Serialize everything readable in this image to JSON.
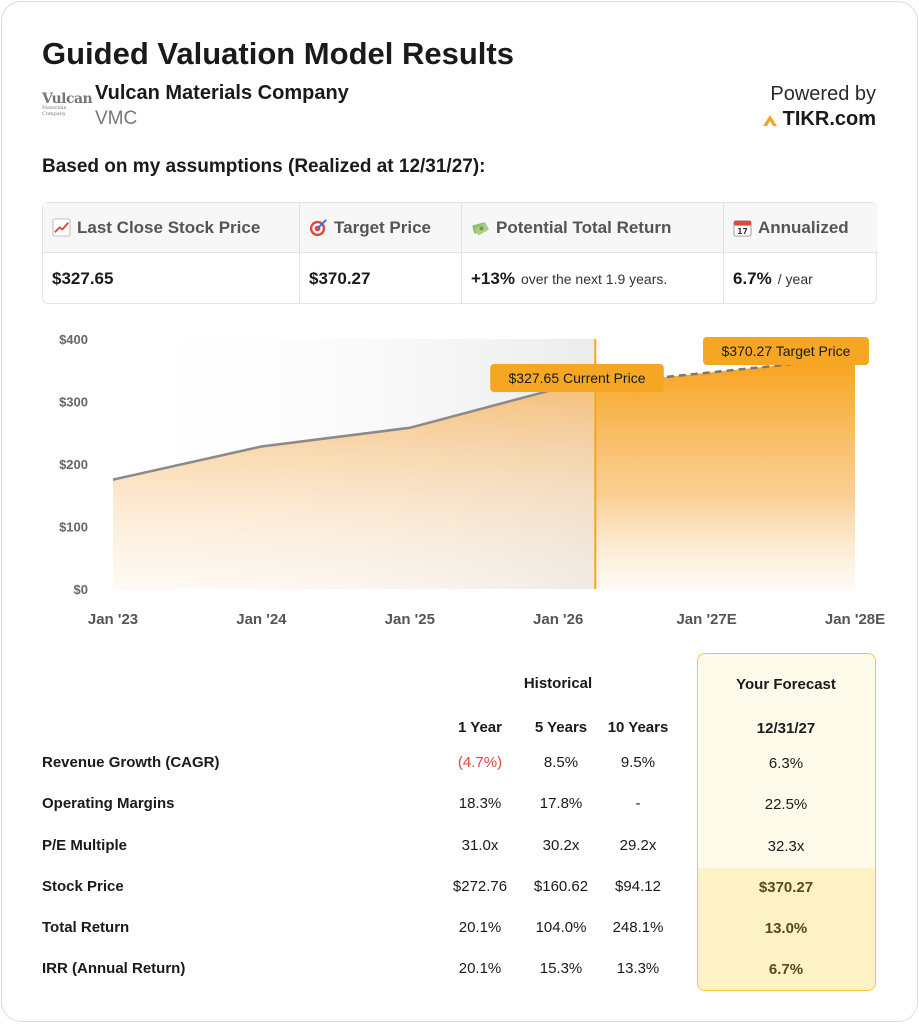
{
  "header": {
    "title": "Guided Valuation Model Results",
    "company_name": "Vulcan Materials Company",
    "ticker": "VMC",
    "logo_text": "Vulcan",
    "logo_subtext": "Materials Company",
    "powered_by": "Powered by",
    "brand": "TIKR.com"
  },
  "assumptions_label": "Based on my assumptions (Realized at 12/31/27):",
  "summary": {
    "last_close": {
      "label": "Last Close Stock Price",
      "value": "$327.65",
      "icon": "chart-up-icon"
    },
    "target": {
      "label": "Target Price",
      "value": "$370.27",
      "icon": "target-icon"
    },
    "total_return": {
      "label": "Potential Total Return",
      "value": "+13%",
      "sub": "over the next 1.9 years.",
      "icon": "money-icon"
    },
    "annualized": {
      "label": "Annualized",
      "value": "6.7%",
      "sub": "/ year",
      "icon": "calendar-icon"
    }
  },
  "chart_data": {
    "type": "area",
    "x": [
      "Jan '23",
      "Jan '24",
      "Jan '25",
      "Jan '26",
      "Jan '27E",
      "Jan '28E"
    ],
    "yticks": [
      "$0",
      "$100",
      "$200",
      "$300",
      "$400"
    ],
    "ylim": [
      0,
      400
    ],
    "historical": [
      {
        "t": 0,
        "y": 175
      },
      {
        "t": 1,
        "y": 228
      },
      {
        "t": 2,
        "y": 258
      },
      {
        "t": 2.95,
        "y": 318
      },
      {
        "t": 3.25,
        "y": 327.65
      }
    ],
    "forecast": [
      {
        "t": 3.25,
        "y": 327.65
      },
      {
        "t": 5,
        "y": 370.27
      }
    ],
    "current_label": "$327.65 Current Price",
    "target_label": "$370.27 Target Price",
    "colors": {
      "accent": "#f5a623",
      "line": "#8a8a8a",
      "fill_hist": "#f7c88a",
      "fill_fc": "#f7a21b"
    }
  },
  "table": {
    "group_historical": "Historical",
    "group_forecast": "Your Forecast",
    "columns": [
      "1 Year",
      "5 Years",
      "10 Years"
    ],
    "forecast_date": "12/31/27",
    "rows": [
      {
        "label": "Revenue Growth (CAGR)",
        "values": [
          "(4.7%)",
          "8.5%",
          "9.5%"
        ],
        "forecast": "6.3%"
      },
      {
        "label": "Operating Margins",
        "values": [
          "18.3%",
          "17.8%",
          "-"
        ],
        "forecast": "22.5%"
      },
      {
        "label": "P/E Multiple",
        "values": [
          "31.0x",
          "30.2x",
          "29.2x"
        ],
        "forecast": "32.3x"
      },
      {
        "label": "Stock Price",
        "values": [
          "$272.76",
          "$160.62",
          "$94.12"
        ],
        "forecast": "$370.27"
      },
      {
        "label": "Total Return",
        "values": [
          "20.1%",
          "104.0%",
          "248.1%"
        ],
        "forecast": "13.0%"
      },
      {
        "label": "IRR (Annual Return)",
        "values": [
          "20.1%",
          "15.3%",
          "13.3%"
        ],
        "forecast": "6.7%"
      }
    ]
  }
}
